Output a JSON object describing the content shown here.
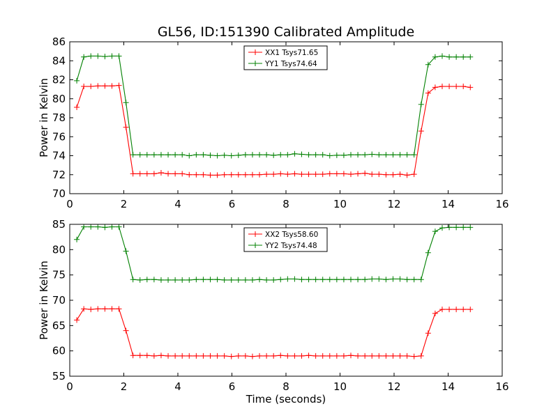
{
  "figure": {
    "title": "GL56, ID:151390 Calibrated Amplitude",
    "xlabel": "Time (seconds)"
  },
  "chart_data": [
    {
      "type": "line",
      "ylabel": "Power in Kelvin",
      "xlim": [
        0,
        16
      ],
      "ylim": [
        70,
        86
      ],
      "xticks": [
        0,
        2,
        4,
        6,
        8,
        10,
        12,
        14,
        16
      ],
      "yticks": [
        70,
        72,
        74,
        76,
        78,
        80,
        82,
        84,
        86
      ],
      "legend_position": "top-center",
      "x": [
        0.26,
        0.52,
        0.78,
        1.04,
        1.3,
        1.56,
        1.82,
        2.08,
        2.34,
        2.6,
        2.86,
        3.12,
        3.38,
        3.64,
        3.9,
        4.16,
        4.42,
        4.68,
        4.94,
        5.2,
        5.46,
        5.72,
        5.98,
        6.24,
        6.5,
        6.76,
        7.02,
        7.28,
        7.54,
        7.8,
        8.06,
        8.32,
        8.58,
        8.84,
        9.1,
        9.36,
        9.62,
        9.88,
        10.14,
        10.4,
        10.66,
        10.92,
        11.18,
        11.44,
        11.7,
        11.96,
        12.22,
        12.48,
        12.74,
        13.0,
        13.26,
        13.52,
        13.78,
        14.04,
        14.3,
        14.56,
        14.82
      ],
      "series": [
        {
          "name": "XX1 Tsys71.65",
          "color": "#ff0000",
          "values": [
            79.1,
            81.3,
            81.3,
            81.35,
            81.35,
            81.35,
            81.4,
            77.0,
            72.1,
            72.1,
            72.1,
            72.1,
            72.2,
            72.1,
            72.1,
            72.1,
            72.0,
            72.0,
            72.0,
            71.95,
            71.95,
            72.0,
            72.0,
            72.0,
            72.0,
            72.0,
            72.0,
            72.05,
            72.05,
            72.1,
            72.05,
            72.1,
            72.05,
            72.05,
            72.05,
            72.05,
            72.1,
            72.1,
            72.1,
            72.05,
            72.1,
            72.15,
            72.05,
            72.05,
            72.0,
            72.0,
            72.05,
            71.95,
            72.05,
            76.6,
            80.6,
            81.2,
            81.3,
            81.3,
            81.3,
            81.3,
            81.2
          ]
        },
        {
          "name": "YY1 Tsys74.64",
          "color": "#008000",
          "values": [
            81.9,
            84.4,
            84.5,
            84.5,
            84.45,
            84.5,
            84.5,
            79.6,
            74.1,
            74.1,
            74.1,
            74.1,
            74.1,
            74.1,
            74.1,
            74.1,
            74.0,
            74.1,
            74.1,
            74.05,
            74.0,
            74.05,
            74.0,
            74.05,
            74.1,
            74.1,
            74.1,
            74.1,
            74.05,
            74.1,
            74.1,
            74.2,
            74.15,
            74.1,
            74.1,
            74.1,
            74.0,
            74.05,
            74.05,
            74.1,
            74.1,
            74.1,
            74.15,
            74.1,
            74.1,
            74.1,
            74.1,
            74.1,
            74.1,
            79.4,
            83.6,
            84.4,
            84.5,
            84.4,
            84.4,
            84.4,
            84.4
          ]
        }
      ]
    },
    {
      "type": "line",
      "ylabel": "Power in Kelvin",
      "xlim": [
        0,
        16
      ],
      "ylim": [
        55,
        85
      ],
      "xticks": [
        0,
        2,
        4,
        6,
        8,
        10,
        12,
        14,
        16
      ],
      "yticks": [
        55,
        60,
        65,
        70,
        75,
        80,
        85
      ],
      "legend_position": "top-center",
      "x": [
        0.26,
        0.52,
        0.78,
        1.04,
        1.3,
        1.56,
        1.82,
        2.08,
        2.34,
        2.6,
        2.86,
        3.12,
        3.38,
        3.64,
        3.9,
        4.16,
        4.42,
        4.68,
        4.94,
        5.2,
        5.46,
        5.72,
        5.98,
        6.24,
        6.5,
        6.76,
        7.02,
        7.28,
        7.54,
        7.8,
        8.06,
        8.32,
        8.58,
        8.84,
        9.1,
        9.36,
        9.62,
        9.88,
        10.14,
        10.4,
        10.66,
        10.92,
        11.18,
        11.44,
        11.7,
        11.96,
        12.22,
        12.48,
        12.74,
        13.0,
        13.26,
        13.52,
        13.78,
        14.04,
        14.3,
        14.56,
        14.82
      ],
      "series": [
        {
          "name": "XX2 Tsys58.60",
          "color": "#ff0000",
          "values": [
            66.1,
            68.3,
            68.2,
            68.3,
            68.3,
            68.3,
            68.3,
            64.0,
            59.1,
            59.1,
            59.1,
            59.0,
            59.1,
            59.0,
            59.0,
            59.0,
            59.0,
            59.0,
            59.0,
            59.0,
            59.0,
            59.0,
            58.9,
            59.0,
            59.0,
            58.9,
            59.0,
            59.0,
            59.0,
            59.1,
            59.0,
            59.0,
            59.0,
            59.1,
            59.0,
            59.0,
            59.0,
            59.0,
            59.0,
            59.1,
            59.0,
            59.0,
            59.0,
            59.0,
            59.0,
            59.0,
            59.0,
            59.0,
            58.9,
            59.0,
            63.5,
            67.4,
            68.2,
            68.2,
            68.2,
            68.2,
            68.2
          ]
        },
        {
          "name": "YY2 Tsys74.48",
          "color": "#008000",
          "values": [
            82.0,
            84.5,
            84.5,
            84.5,
            84.4,
            84.5,
            84.5,
            79.7,
            74.1,
            74.0,
            74.1,
            74.1,
            74.0,
            74.0,
            74.0,
            74.0,
            74.0,
            74.1,
            74.1,
            74.1,
            74.1,
            74.0,
            74.0,
            74.0,
            74.0,
            74.0,
            74.1,
            74.0,
            74.0,
            74.1,
            74.2,
            74.2,
            74.1,
            74.1,
            74.1,
            74.1,
            74.1,
            74.1,
            74.1,
            74.1,
            74.1,
            74.1,
            74.2,
            74.2,
            74.1,
            74.2,
            74.2,
            74.1,
            74.1,
            74.1,
            79.4,
            83.6,
            84.3,
            84.4,
            84.4,
            84.4,
            84.4
          ]
        }
      ]
    }
  ]
}
